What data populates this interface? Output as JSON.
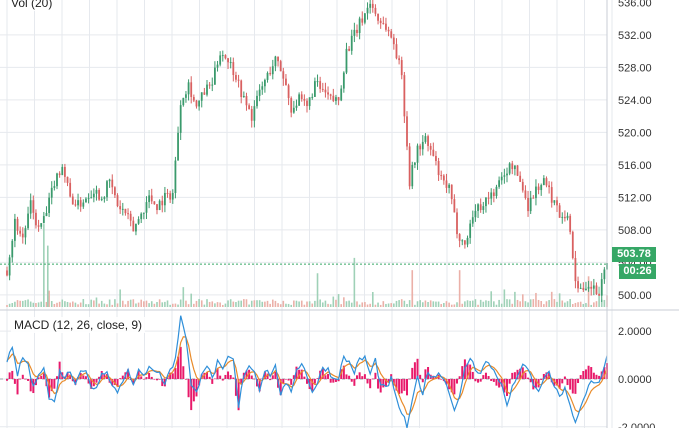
{
  "chart_data": [
    {
      "type": "candlestick",
      "panel": "price",
      "volume_label": "Vol (20)",
      "y_axis": {
        "ticks": [
          "532.00",
          "528.00",
          "524.00",
          "520.00",
          "516.00",
          "512.00",
          "508.00",
          "504.00",
          "500.00"
        ],
        "top_partial_tick": "536.00",
        "range": [
          498.5,
          536.3
        ]
      },
      "last_price": "503.78",
      "countdown": "00:26",
      "close_path": [
        [
          0,
          503
        ],
        [
          3,
          509
        ],
        [
          6,
          507
        ],
        [
          9,
          511
        ],
        [
          12,
          508
        ],
        [
          15,
          510
        ],
        [
          18,
          514
        ],
        [
          21,
          516
        ],
        [
          24,
          512
        ],
        [
          27,
          511
        ],
        [
          30,
          512
        ],
        [
          33,
          513
        ],
        [
          36,
          512
        ],
        [
          39,
          514
        ],
        [
          42,
          511
        ],
        [
          45,
          510
        ],
        [
          48,
          508
        ],
        [
          51,
          510
        ],
        [
          54,
          512
        ],
        [
          57,
          511
        ],
        [
          60,
          512
        ],
        [
          63,
          512.5
        ],
        [
          66,
          524
        ],
        [
          69,
          526
        ],
        [
          72,
          523
        ],
        [
          75,
          525
        ],
        [
          78,
          526
        ],
        [
          81,
          530
        ],
        [
          84,
          529
        ],
        [
          87,
          527
        ],
        [
          90,
          524
        ],
        [
          93,
          522
        ],
        [
          96,
          525
        ],
        [
          99,
          527
        ],
        [
          102,
          529
        ],
        [
          105,
          527
        ],
        [
          108,
          523
        ],
        [
          111,
          524
        ],
        [
          114,
          523
        ],
        [
          117,
          526
        ],
        [
          120,
          525
        ],
        [
          123,
          524
        ],
        [
          126,
          524
        ],
        [
          129,
          530
        ],
        [
          132,
          532
        ],
        [
          135,
          534
        ],
        [
          138,
          536
        ],
        [
          141,
          534
        ],
        [
          144,
          533
        ],
        [
          147,
          531
        ],
        [
          150,
          527
        ],
        [
          153,
          514
        ],
        [
          156,
          518
        ],
        [
          159,
          519
        ],
        [
          162,
          517
        ],
        [
          165,
          514
        ],
        [
          168,
          513
        ],
        [
          171,
          508
        ],
        [
          174,
          506
        ],
        [
          177,
          510
        ],
        [
          180,
          511
        ],
        [
          183,
          512
        ],
        [
          186,
          513
        ],
        [
          189,
          515
        ],
        [
          192,
          516
        ],
        [
          195,
          514
        ],
        [
          198,
          511
        ],
        [
          201,
          513
        ],
        [
          204,
          514
        ],
        [
          207,
          512
        ],
        [
          210,
          510
        ],
        [
          213,
          510
        ],
        [
          216,
          502
        ],
        [
          219,
          500
        ],
        [
          222,
          501
        ],
        [
          225,
          500
        ],
        [
          228,
          503.78
        ]
      ],
      "volume_spikes": [
        {
          "x": 14,
          "height": 0.27
        },
        {
          "x": 15.5,
          "height": 0.2
        },
        {
          "x": 118,
          "height": 0.11
        },
        {
          "x": 132,
          "height": 0.16
        },
        {
          "x": 154,
          "height": 0.12
        },
        {
          "x": 172,
          "height": 0.12
        },
        {
          "x": 221,
          "height": 0.1
        }
      ],
      "colors": {
        "up": "#3a9a6c",
        "down": "#d96060",
        "grid": "#e6e9ee",
        "price_line": "#36a766"
      }
    },
    {
      "type": "line",
      "panel": "macd",
      "title": "MACD (12, 26, close, 9)",
      "y_axis": {
        "ticks": [
          "2.0000",
          "0.0000"
        ],
        "bottom_partial_tick": "-2.0000",
        "range": [
          -2.05,
          2.8
        ]
      },
      "macd_path": [
        [
          0,
          0.8
        ],
        [
          2,
          1.2
        ],
        [
          4,
          0.2
        ],
        [
          6,
          0.9
        ],
        [
          8,
          0.6
        ],
        [
          10,
          -0.4
        ],
        [
          12,
          0.3
        ],
        [
          14,
          0.5
        ],
        [
          16,
          -0.8
        ],
        [
          18,
          -1.0
        ],
        [
          20,
          0.3
        ],
        [
          22,
          0.1
        ],
        [
          24,
          0.3
        ],
        [
          26,
          -0.1
        ],
        [
          28,
          0.4
        ],
        [
          30,
          0.3
        ],
        [
          32,
          -0.4
        ],
        [
          34,
          -0.3
        ],
        [
          36,
          0.2
        ],
        [
          38,
          0.4
        ],
        [
          40,
          -0.3
        ],
        [
          42,
          -0.5
        ],
        [
          44,
          -0.1
        ],
        [
          46,
          0.5
        ],
        [
          48,
          -0.3
        ],
        [
          50,
          0.3
        ],
        [
          52,
          0.1
        ],
        [
          54,
          0.6
        ],
        [
          56,
          0.4
        ],
        [
          58,
          0.2
        ],
        [
          60,
          -0.2
        ],
        [
          62,
          0.4
        ],
        [
          64,
          0.8
        ],
        [
          66,
          2.7
        ],
        [
          68,
          1.8
        ],
        [
          70,
          -0.3
        ],
        [
          72,
          -0.6
        ],
        [
          74,
          0.3
        ],
        [
          76,
          0.6
        ],
        [
          78,
          0.0
        ],
        [
          80,
          0.7
        ],
        [
          82,
          0.3
        ],
        [
          84,
          0.9
        ],
        [
          86,
          0.8
        ],
        [
          88,
          -1.2
        ],
        [
          90,
          0.2
        ],
        [
          92,
          0.6
        ],
        [
          94,
          0.3
        ],
        [
          96,
          -0.4
        ],
        [
          98,
          0.4
        ],
        [
          100,
          0.2
        ],
        [
          102,
          0.5
        ],
        [
          104,
          -0.6
        ],
        [
          106,
          -0.3
        ],
        [
          108,
          -0.5
        ],
        [
          110,
          0.4
        ],
        [
          112,
          0.7
        ],
        [
          114,
          0.1
        ],
        [
          116,
          -0.5
        ],
        [
          118,
          -0.2
        ],
        [
          120,
          0.5
        ],
        [
          122,
          0.4
        ],
        [
          124,
          0.0
        ],
        [
          126,
          0.1
        ],
        [
          128,
          0.9
        ],
        [
          130,
          0.7
        ],
        [
          132,
          0.3
        ],
        [
          134,
          0.8
        ],
        [
          136,
          0.9
        ],
        [
          138,
          0.2
        ],
        [
          140,
          0.8
        ],
        [
          142,
          -0.3
        ],
        [
          144,
          -0.4
        ],
        [
          146,
          0.0
        ],
        [
          148,
          -0.9
        ],
        [
          150,
          -1.4
        ],
        [
          152,
          -2.0
        ],
        [
          154,
          -1.0
        ],
        [
          156,
          0.1
        ],
        [
          158,
          -0.6
        ],
        [
          160,
          0.3
        ],
        [
          162,
          0.1
        ],
        [
          164,
          0.2
        ],
        [
          166,
          0.1
        ],
        [
          168,
          -0.6
        ],
        [
          170,
          -1.2
        ],
        [
          172,
          -0.8
        ],
        [
          174,
          0.4
        ],
        [
          176,
          0.9
        ],
        [
          178,
          0.4
        ],
        [
          180,
          0.3
        ],
        [
          182,
          0.7
        ],
        [
          184,
          0.5
        ],
        [
          186,
          0.2
        ],
        [
          188,
          -0.3
        ],
        [
          190,
          -1.1
        ],
        [
          192,
          -0.4
        ],
        [
          194,
          0.2
        ],
        [
          196,
          0.5
        ],
        [
          198,
          0.4
        ],
        [
          200,
          -0.2
        ],
        [
          202,
          -0.6
        ],
        [
          204,
          0.1
        ],
        [
          206,
          0.2
        ],
        [
          208,
          -0.3
        ],
        [
          210,
          -0.8
        ],
        [
          212,
          -0.3
        ],
        [
          214,
          -1.2
        ],
        [
          216,
          -1.9
        ],
        [
          218,
          -1.2
        ],
        [
          220,
          -0.6
        ],
        [
          222,
          0.0
        ],
        [
          224,
          -0.2
        ],
        [
          226,
          0.1
        ],
        [
          228,
          0.9
        ]
      ],
      "colors": {
        "macd": "#2f8fd9",
        "signal": "#e98b2a",
        "histogram": "#e8196a",
        "zero": "#9aa3ad"
      }
    }
  ]
}
